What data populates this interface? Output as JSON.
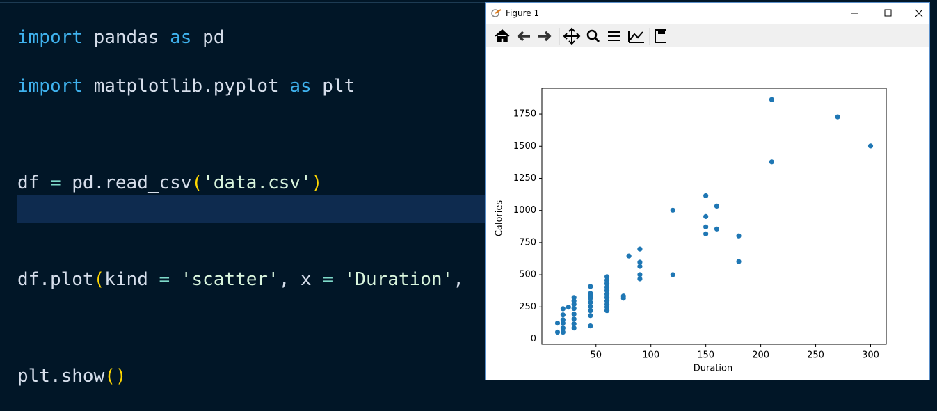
{
  "editor": {
    "lines": [
      [
        "import",
        " pandas ",
        "as",
        " pd"
      ],
      [
        "import",
        " matplotlib.pyplot ",
        "as",
        " plt"
      ],
      [
        "df ",
        "= ",
        "pd.read_csv",
        "(",
        "'data.csv'",
        ")"
      ],
      [
        "df.plot",
        "(",
        "kind ",
        "= ",
        "'scatter'",
        ", x ",
        "= ",
        "'Duration'",
        ","
      ],
      [
        "plt.show",
        "()"
      ]
    ]
  },
  "window": {
    "title": "Figure 1"
  },
  "chart_data": {
    "type": "scatter",
    "color": "#1f77b4",
    "x_label": "Duration",
    "y_label": "Calories",
    "xlim": [
      0.75,
      314.25
    ],
    "ylim": [
      -40.5,
      1950.5
    ],
    "xticks": [
      50,
      100,
      150,
      200,
      250,
      300
    ],
    "yticks": [
      0,
      250,
      500,
      750,
      1000,
      1250,
      1500,
      1750
    ],
    "grid": false,
    "x": [
      15,
      15,
      20,
      20,
      20,
      20,
      20,
      20,
      25,
      30,
      30,
      30,
      30,
      30,
      30,
      30,
      30,
      45,
      45,
      45,
      45,
      45,
      45,
      45,
      45,
      45,
      60,
      60,
      60,
      60,
      60,
      60,
      60,
      60,
      60,
      60,
      60,
      75,
      75,
      80,
      90,
      90,
      90,
      90,
      90,
      120,
      120,
      150,
      150,
      150,
      150,
      160,
      160,
      180,
      180,
      210,
      210,
      270,
      300
    ],
    "values": [
      54,
      124,
      236,
      188,
      124,
      86,
      54,
      150,
      248,
      323,
      296,
      270,
      237,
      194,
      156,
      118,
      86,
      409,
      355,
      318,
      285,
      253,
      221,
      183,
      102,
      335,
      485,
      458,
      431,
      404,
      377,
      350,
      323,
      296,
      269,
      248,
      221,
      334,
      318,
      646,
      700,
      598,
      565,
      501,
      468,
      1002,
      501,
      1115,
      953,
      872,
      818,
      1034,
      856,
      802,
      603,
      1863,
      1378,
      1728,
      1502
    ]
  }
}
